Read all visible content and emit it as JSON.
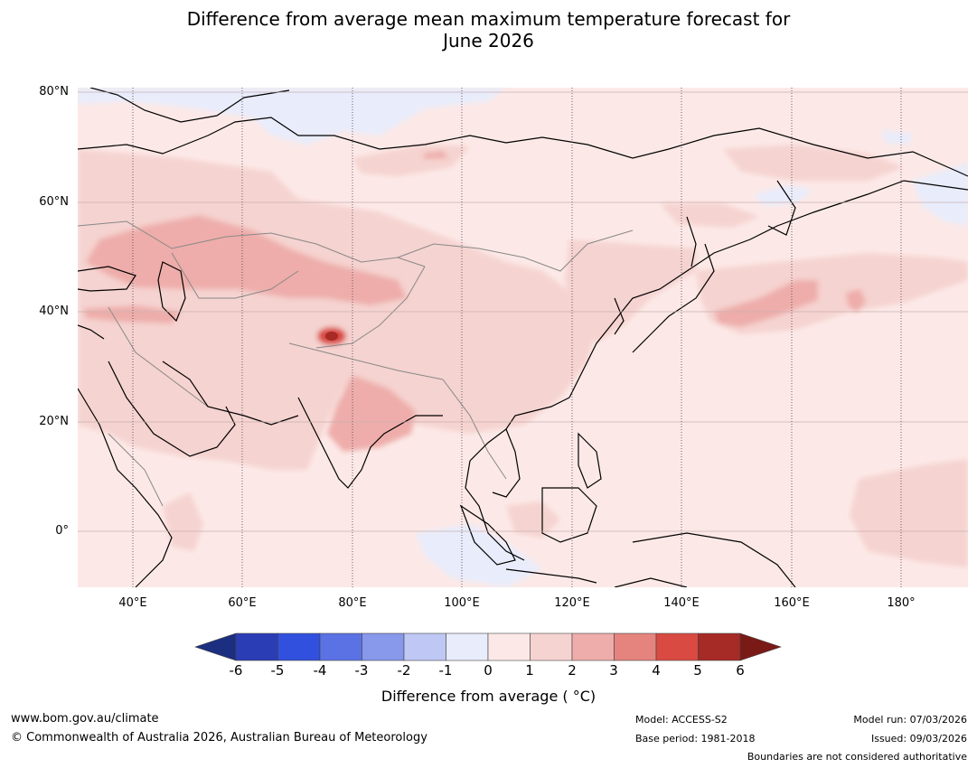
{
  "title": {
    "line1": "Difference from average mean maximum temperature forecast for",
    "line2": "June 2026"
  },
  "map": {
    "lat_labels": [
      "80°N",
      "60°N",
      "40°N",
      "20°N",
      "0°"
    ],
    "lat_values": [
      80,
      60,
      40,
      20,
      0
    ],
    "lon_labels": [
      "40°E",
      "60°E",
      "80°E",
      "100°E",
      "120°E",
      "140°E",
      "160°E",
      "180°"
    ],
    "lon_values": [
      40,
      60,
      80,
      100,
      120,
      140,
      160,
      180
    ],
    "lon_range": [
      30,
      192
    ],
    "lat_range": [
      -10,
      80
    ],
    "colors": {
      "background_anomaly": "#fce9e7",
      "land_line": "#000000",
      "border_line": "#888888"
    }
  },
  "colorbar": {
    "ticks": [
      "-6",
      "-5",
      "-4",
      "-3",
      "-2",
      "-1",
      "0",
      "1",
      "2",
      "3",
      "4",
      "5",
      "6"
    ],
    "colors": [
      "#1c2e80",
      "#2a3db5",
      "#3150de",
      "#5b72e4",
      "#8898ea",
      "#bfc8f4",
      "#e8ecfb",
      "#fce9e7",
      "#f5d3d0",
      "#eeadaa",
      "#e5847e",
      "#d94a42",
      "#a62a25",
      "#7a1a17"
    ],
    "label": "Difference from average ( °C)"
  },
  "footer": {
    "website": "www.bom.gov.au/climate",
    "copyright": "© Commonwealth of Australia 2026, Australian Bureau of Meteorology",
    "model": "Model: ACCESS-S2",
    "base_period": "Base period: 1981-2018",
    "model_run": "Model run: 07/03/2026",
    "issued": "Issued: 09/03/2026",
    "disclaimer": "Boundaries are not considered authoritative"
  }
}
